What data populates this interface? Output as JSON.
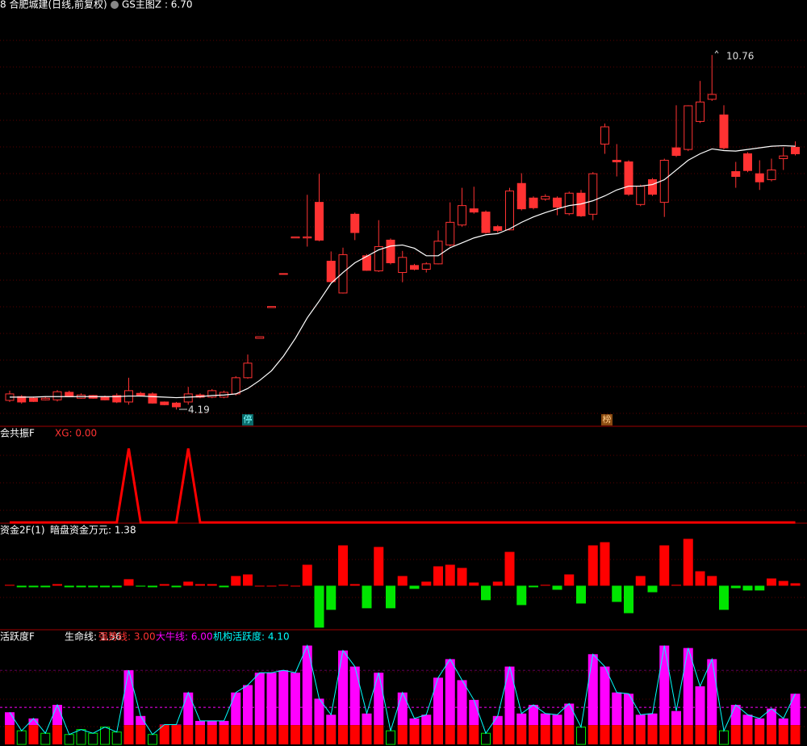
{
  "chart_data": [
    {
      "type": "candlestick",
      "title": "8 合肥城建(日线,前复权)",
      "subtitle": "GS主图Z : 6.70",
      "annotations": [
        "10.76",
        "4.19",
        "停",
        "榜"
      ],
      "ylim": [
        3.88,
        11.78
      ],
      "up_color": "#ff3232",
      "ma_color": "#ffffff",
      "open": [
        4.36,
        4.43,
        4.4,
        4.37,
        4.37,
        4.51,
        4.4,
        4.45,
        4.43,
        4.45,
        4.33,
        4.49,
        4.48,
        4.33,
        4.31,
        4.33,
        4.46,
        4.42,
        4.42,
        4.48,
        4.78,
        5.51,
        6.08,
        6.7,
        7.37,
        7.37,
        8.03,
        6.94,
        6.35,
        7.81,
        7.04,
        6.76,
        7.33,
        6.73,
        6.86,
        6.79,
        6.89,
        7.24,
        7.61,
        7.91,
        7.85,
        7.58,
        7.52,
        8.38,
        8.11,
        8.09,
        8.11,
        7.82,
        8.2,
        7.81,
        9.11,
        8.81,
        8.78,
        7.99,
        8.45,
        8.03,
        9.04,
        9.01,
        9.53,
        9.94,
        9.65,
        8.6,
        8.93,
        8.56,
        8.45,
        8.84,
        9.05
      ],
      "close": [
        4.48,
        4.33,
        4.34,
        4.4,
        4.52,
        4.43,
        4.46,
        4.4,
        4.37,
        4.33,
        4.54,
        4.45,
        4.31,
        4.28,
        4.24,
        4.48,
        4.42,
        4.54,
        4.51,
        4.78,
        5.05,
        5.54,
        6.1,
        6.71,
        7.39,
        7.39,
        7.33,
        6.56,
        7.06,
        7.47,
        6.77,
        7.21,
        6.91,
        7.01,
        6.79,
        6.89,
        7.31,
        7.66,
        7.97,
        7.85,
        7.47,
        7.51,
        8.24,
        7.91,
        7.93,
        8.14,
        7.94,
        8.2,
        7.78,
        8.56,
        9.43,
        8.78,
        8.18,
        8.33,
        8.18,
        8.81,
        8.9,
        9.82,
        9.89,
        10.03,
        9.04,
        8.51,
        8.62,
        8.41,
        8.63,
        8.89,
        8.93
      ],
      "high": [
        4.54,
        4.46,
        4.43,
        4.43,
        4.55,
        4.54,
        4.49,
        4.46,
        4.45,
        4.49,
        4.78,
        4.52,
        4.51,
        4.34,
        4.33,
        4.61,
        4.49,
        4.57,
        4.54,
        4.81,
        5.21,
        5.54,
        6.1,
        6.71,
        7.39,
        8.17,
        8.56,
        7.12,
        7.19,
        7.84,
        7.07,
        7.7,
        7.36,
        7.13,
        6.89,
        6.92,
        7.51,
        8.03,
        8.3,
        8.32,
        7.88,
        7.61,
        8.3,
        8.57,
        8.14,
        8.18,
        8.14,
        8.23,
        8.26,
        8.59,
        9.49,
        9.11,
        8.81,
        8.36,
        8.48,
        8.84,
        9.83,
        9.83,
        10.28,
        10.76,
        9.83,
        8.78,
        8.96,
        8.81,
        8.84,
        9.05,
        9.16
      ],
      "low": [
        4.33,
        4.3,
        4.33,
        4.36,
        4.34,
        4.42,
        4.39,
        4.39,
        4.36,
        4.31,
        4.28,
        4.43,
        4.3,
        4.27,
        4.19,
        4.28,
        4.4,
        4.4,
        4.4,
        4.45,
        4.76,
        5.51,
        6.08,
        6.7,
        7.37,
        7.21,
        7.31,
        6.55,
        6.34,
        7.33,
        6.76,
        6.74,
        6.88,
        6.55,
        6.77,
        6.73,
        6.88,
        7.21,
        7.58,
        7.82,
        7.45,
        7.47,
        7.51,
        7.88,
        7.9,
        8.06,
        7.79,
        7.79,
        7.76,
        7.7,
        8.93,
        8.51,
        8.15,
        7.96,
        8.15,
        7.76,
        8.87,
        8.98,
        9.5,
        9.91,
        9.01,
        8.3,
        8.59,
        8.26,
        8.42,
        8.63,
        8.9
      ],
      "ma": [
        4.42,
        4.42,
        4.42,
        4.43,
        4.43,
        4.43,
        4.43,
        4.43,
        4.43,
        4.43,
        4.44,
        4.44,
        4.43,
        4.42,
        4.41,
        4.42,
        4.43,
        4.45,
        4.46,
        4.48,
        4.58,
        4.73,
        4.91,
        5.18,
        5.51,
        5.89,
        6.2,
        6.53,
        6.73,
        6.91,
        7.03,
        7.15,
        7.22,
        7.24,
        7.18,
        7.04,
        7.04,
        7.19,
        7.28,
        7.37,
        7.43,
        7.45,
        7.54,
        7.66,
        7.76,
        7.84,
        7.91,
        7.97,
        8.0,
        8.06,
        8.15,
        8.26,
        8.33,
        8.33,
        8.36,
        8.45,
        8.63,
        8.81,
        8.93,
        9.02,
        8.99,
        8.98,
        9.01,
        9.04,
        9.07,
        9.08,
        9.07
      ]
    },
    {
      "type": "line",
      "title": "会共振F",
      "subtitle": "XG: 0.00",
      "color": "#ff0000",
      "ylim": [
        -0.01,
        1.3
      ],
      "values": [
        0,
        0,
        0,
        0,
        0,
        0,
        0,
        0,
        0,
        0,
        1,
        0,
        0,
        0,
        0,
        1,
        0,
        0,
        0,
        0,
        0,
        0,
        0,
        0,
        0,
        0,
        0,
        0,
        0,
        0,
        0,
        0,
        0,
        0,
        0,
        0,
        0,
        0,
        0,
        0,
        0,
        0,
        0,
        0,
        0,
        0,
        0,
        0,
        0,
        0,
        0,
        0,
        0,
        0,
        0,
        0,
        0,
        0,
        0,
        0,
        0,
        0,
        0,
        0,
        0,
        0,
        0
      ]
    },
    {
      "type": "bar",
      "title": "资金2F(1)",
      "subtitle": "暗盘资金万元: 1.38",
      "up_color": "#ff0000",
      "down_color": "#00e600",
      "ylim": [
        -25,
        30
      ],
      "values": [
        0.5,
        -0.9,
        -0.9,
        -0.9,
        0.9,
        -0.9,
        -0.9,
        -0.9,
        -0.9,
        -0.9,
        3.7,
        -0.5,
        -0.9,
        0.9,
        -0.9,
        2.3,
        0.9,
        0.9,
        -0.9,
        5.5,
        6.4,
        0,
        0,
        0.5,
        0,
        11.9,
        -23.8,
        -13.7,
        22.9,
        0.9,
        -12.8,
        22.0,
        -12.8,
        5.5,
        -1.8,
        2.3,
        11.0,
        11.9,
        10.1,
        1.8,
        -8.2,
        2.3,
        19.2,
        -11.0,
        -0.9,
        0.5,
        -2.3,
        6.4,
        -10.1,
        22.9,
        24.7,
        -9.2,
        -15.6,
        5.5,
        -3.7,
        22.9,
        0.5,
        26.6,
        8.2,
        5.5,
        -13.7,
        -1.4,
        -2.7,
        -2.7,
        4.1,
        2.7,
        1.38
      ]
    },
    {
      "type": "activity",
      "title": "活跃度F",
      "ylim": [
        0,
        8.3
      ],
      "low_color": "#00e600",
      "base_color": "#ff0000",
      "line_color": "#00ffff",
      "dash_color": "#ff00ff",
      "levels": [
        {
          "name": "生命线: 1.56",
          "value": 1.56,
          "color": "#ffffff"
        },
        {
          "name": "强势线: 3.00",
          "value": 3.0,
          "color": "#ff3232"
        },
        {
          "name": "大牛线: 6.00",
          "value": 6.0,
          "color": "#ff00ff"
        }
      ],
      "series": [
        {
          "name": "机构活跃度: 4.10",
          "color": "#ff00ff",
          "values": [
            2.6,
            1.1,
            2.1,
            0.9,
            3.2,
            0.8,
            1.2,
            0.9,
            1.4,
            1.0,
            6.0,
            2.3,
            0.8,
            1.6,
            1.6,
            4.2,
            1.9,
            1.9,
            1.9,
            4.2,
            4.8,
            5.8,
            5.8,
            6.0,
            5.8,
            8.0,
            3.7,
            2.4,
            7.6,
            6.3,
            2.5,
            5.8,
            1.1,
            4.2,
            2.1,
            2.4,
            5.4,
            6.9,
            5.2,
            3.6,
            0.9,
            2.3,
            6.3,
            2.5,
            3.2,
            2.5,
            2.4,
            3.3,
            1.4,
            7.3,
            6.3,
            4.2,
            4.1,
            2.4,
            2.5,
            8.0,
            2.7,
            7.8,
            4.7,
            6.9,
            1.1,
            3.2,
            2.4,
            2.1,
            2.9,
            2.1,
            4.1
          ]
        }
      ]
    }
  ]
}
